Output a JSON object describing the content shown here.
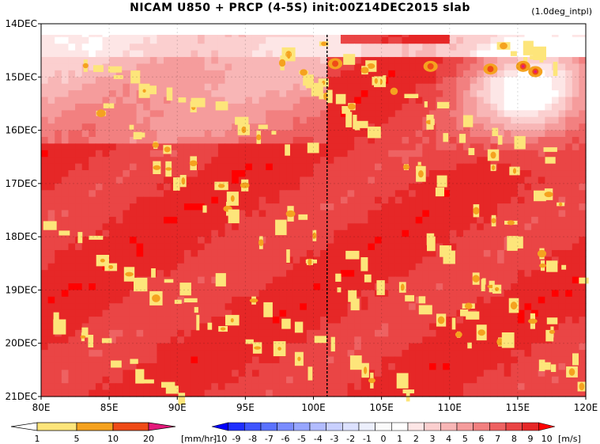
{
  "title": "NICAM   U850 + PRCP (4-5S) init:00Z14DEC2015 slab",
  "subtitle": "(1.0deg_intpl)",
  "chart_data": {
    "type": "heatmap",
    "x_axis": {
      "ticks": [
        "80E",
        "85E",
        "90E",
        "95E",
        "100E",
        "105E",
        "110E",
        "115E",
        "120E"
      ],
      "range": [
        "80E",
        "120E"
      ]
    },
    "y_axis": {
      "ticks": [
        "14DEC",
        "15DEC",
        "16DEC",
        "17DEC",
        "18DEC",
        "19DEC",
        "20DEC",
        "21DEC"
      ],
      "range": [
        "14DEC",
        "21DEC"
      ],
      "direction": "time increases downward"
    },
    "reference_line": {
      "x": "101E",
      "style": "dashed black"
    },
    "precip_colorbar": {
      "units": "[mm/hr]",
      "labels": [
        "1",
        "5",
        "10",
        "20"
      ],
      "colors": [
        "#ffffff",
        "#fde57a",
        "#f5a21f",
        "#ef4b17",
        "#e3197b"
      ]
    },
    "wind_colorbar": {
      "units": "[m/s]",
      "labels": [
        "-10",
        "-9",
        "-8",
        "-7",
        "-6",
        "-5",
        "-4",
        "-3",
        "-2",
        "-1",
        "0",
        "1",
        "2",
        "3",
        "4",
        "5",
        "6",
        "7",
        "8",
        "9",
        "10"
      ],
      "colors": [
        "#0000ff",
        "#1f2fff",
        "#3f55ff",
        "#5a72ff",
        "#7a8cff",
        "#97a6ff",
        "#b2bcff",
        "#c9d0ff",
        "#dce1ff",
        "#eceffc",
        "#fafafa",
        "#ffffff",
        "#fde6e6",
        "#fbcfcf",
        "#f8b6b6",
        "#f59c9c",
        "#f28080",
        "#ee6262",
        "#ea4545",
        "#e62727",
        "#ff0000"
      ]
    },
    "fields": {
      "u850": "mostly positive 5–10 m/s westerlies; weaker (1–3 m/s) over 80E–100E early 14–16DEC and over 112E–120E on 15–16DEC",
      "prcp": "scattered 1–10 mm/hr patches, locally >20 mm/hr near 113–116E on 15DEC"
    }
  },
  "colors": {
    "frame": "#000000",
    "dashline": "#000000"
  }
}
